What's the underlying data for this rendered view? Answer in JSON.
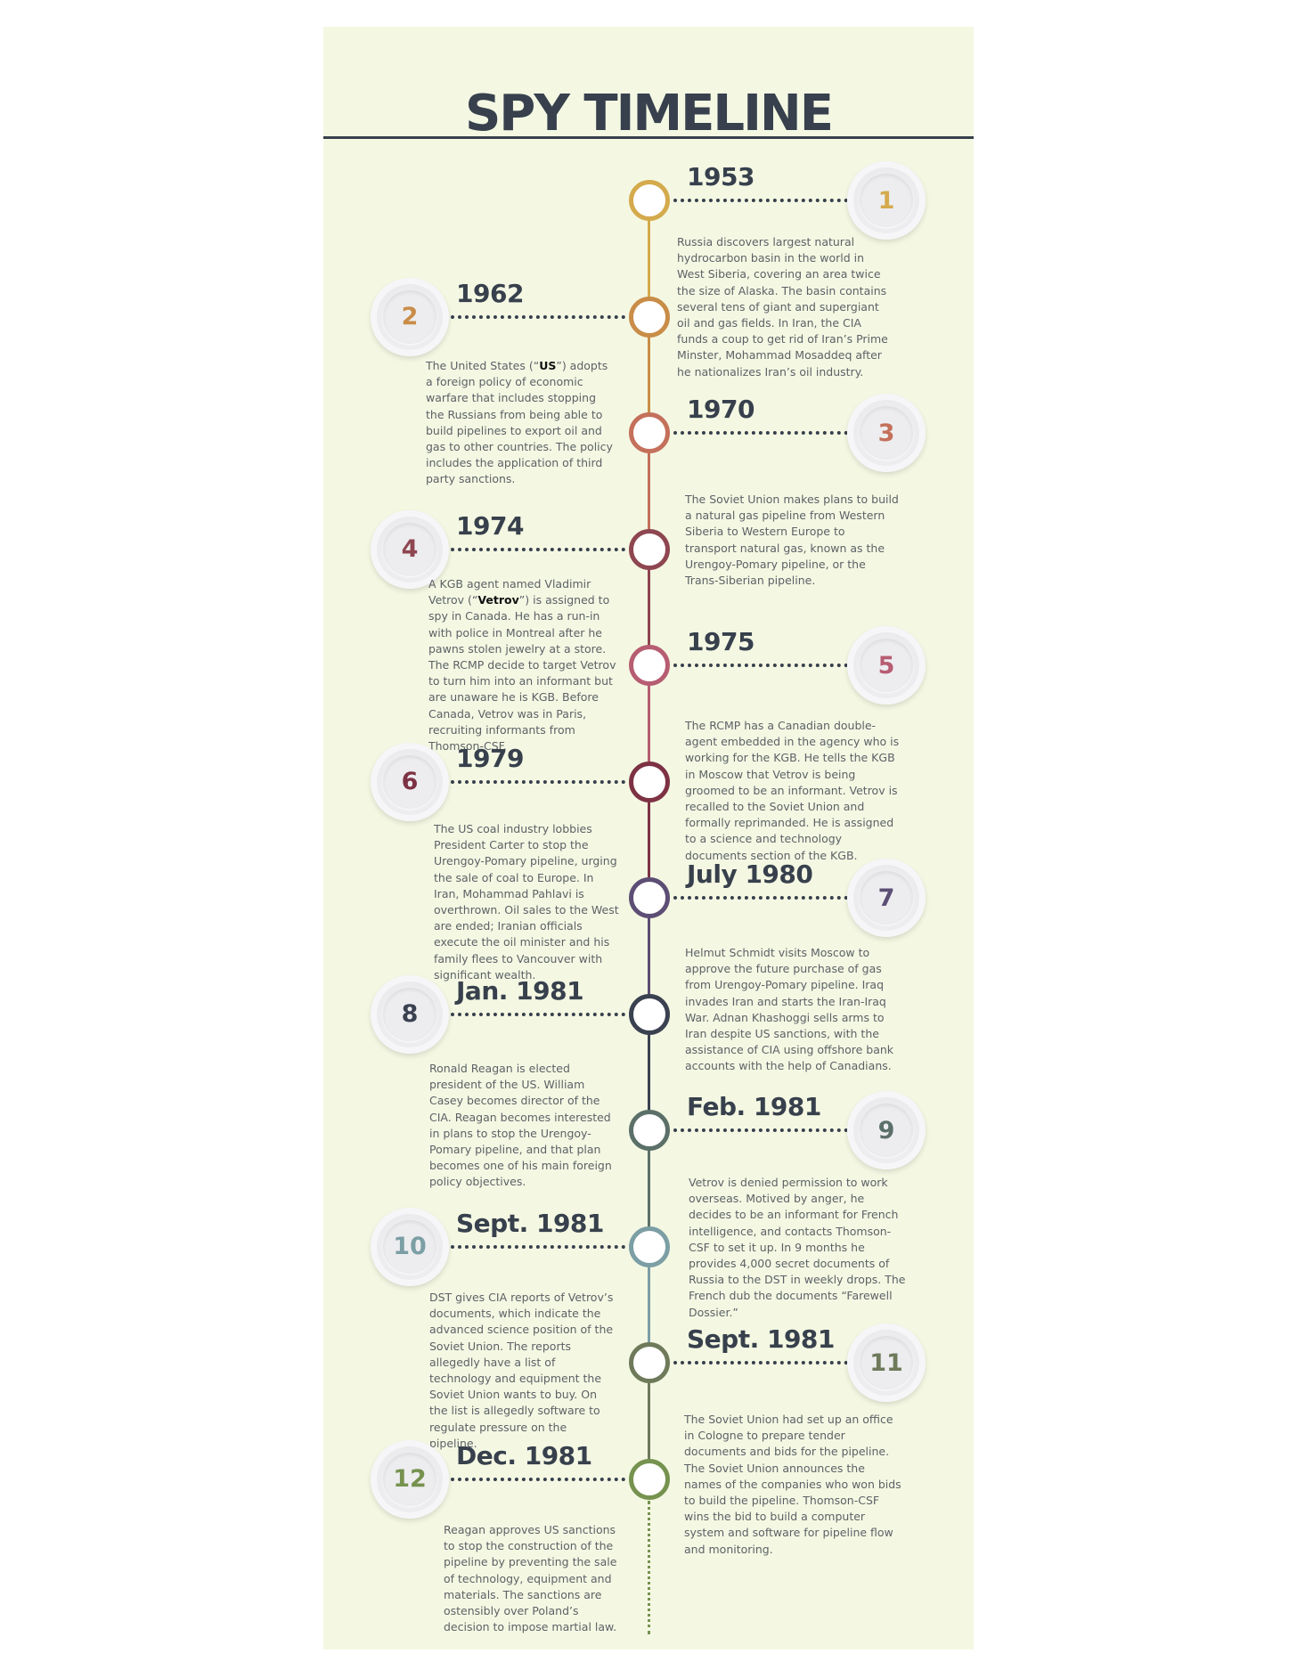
{
  "title": "SPY TIMELINE",
  "colors": {
    "background": "#f4f8e3",
    "text_dark": "#37404c",
    "text_body": "#5d6166"
  },
  "events": [
    {
      "number": "1",
      "date": "1953",
      "side": "right",
      "color": "#d4aa4c",
      "description": "Russia discovers largest natural hydrocarbon basin in the world in West Siberia, covering an area twice the size of Alaska. The basin contains several tens of giant and supergiant oil and gas fields. In Iran, the CIA funds a coup to get rid of Iran’s Prime Minster, Mohammad Mosaddeq after he nationalizes Iran’s oil industry."
    },
    {
      "number": "2",
      "date": "1962",
      "side": "left",
      "color": "#c98d48",
      "description_parts": [
        "The United States (“",
        "US",
        "”) adopts a foreign policy of economic warfare that includes stopping the Russians from being able to build pipelines to export oil and gas to other countries. The policy includes the application of third party sanctions."
      ]
    },
    {
      "number": "3",
      "date": "1970",
      "side": "right",
      "color": "#c4705b",
      "description": "The Soviet Union makes plans to build a natural gas pipeline from Western Siberia to Western Europe to transport natural gas, known as the  Urengoy-Pomary pipeline, or the Trans-Siberian pipeline."
    },
    {
      "number": "4",
      "date": "1974",
      "side": "left",
      "color": "#8e4650",
      "description_parts": [
        "A KGB agent named Vladimir Vetrov (“",
        "Vetrov",
        "”) is assigned to spy in Canada. He has a run-in with police in Montreal after he pawns stolen jewelry at a store. The RCMP decide to target Vetrov to turn him into an informant but are unaware he is KGB. Before Canada, Vetrov was in Paris, recruiting informants from Thomson-CSF."
      ]
    },
    {
      "number": "5",
      "date": "1975",
      "side": "right",
      "color": "#b75d72",
      "description": "The RCMP has a Canadian double-agent embedded in the agency who is working for the KGB. He tells the KGB in Moscow that Vetrov is being groomed to be an informant. Vetrov is recalled to the Soviet Union and formally reprimanded. He is assigned to a science and technology documents section of the KGB."
    },
    {
      "number": "6",
      "date": "1979",
      "side": "left",
      "color": "#7d3244",
      "description": "The US coal industry lobbies President Carter to stop the Urengoy-Pomary pipeline, urging the sale of coal to Europe. In Iran, Mohammad Pahlavi is overthrown. Oil sales to the West are ended; Iranian officials execute the oil minister and his family flees to Vancouver with significant wealth."
    },
    {
      "number": "7",
      "date": "July 1980",
      "side": "right",
      "color": "#5c4e74",
      "description": "Helmut Schmidt visits Moscow to approve the future purchase of gas from Urengoy-Pomary pipeline. Iraq invades Iran and starts the Iran-Iraq War. Adnan Khashoggi sells arms to Iran despite US sanctions, with the assistance of CIA using offshore bank accounts with the help of Canadians."
    },
    {
      "number": "8",
      "date": "Jan. 1981",
      "side": "left",
      "color": "#3a4150",
      "description": "Ronald Reagan is elected president of the US. William Casey becomes director of the CIA. Reagan becomes interested in plans to stop the Urengoy-Pomary pipeline, and that plan becomes one of his main foreign policy objectives."
    },
    {
      "number": "9",
      "date": "Feb. 1981",
      "side": "right",
      "color": "#5b7068",
      "description": "Vetrov is denied permission to work overseas. Motived by anger, he decides to be an informant for French intelligence, and contacts Thomson-CSF to set it up. In 9 months he provides 4,000 secret documents of Russia to the DST in weekly drops. The French dub the documents “Farewell Dossier.”"
    },
    {
      "number": "10",
      "date": "Sept. 1981",
      "side": "left",
      "color": "#7c9ea5",
      "description": "DST gives CIA reports of Vetrov’s documents, which indicate the advanced science position of the Soviet Union. The reports allegedly have a list of technology and equipment the Soviet Union wants to buy. On the list is allegedly software to regulate pressure on the pipeline."
    },
    {
      "number": "11",
      "date": "Sept. 1981",
      "side": "right",
      "color": "#6e7a5a",
      "description": "The Soviet Union had set up an office in Cologne to prepare tender documents and bids for the pipeline. The Soviet Union announces the names of the companies who won bids to build the pipeline. Thomson-CSF wins the bid to build a computer system and software for pipeline flow and monitoring."
    },
    {
      "number": "12",
      "date": "Dec. 1981",
      "side": "left",
      "color": "#76924f",
      "description": "Reagan approves US sanctions to stop the construction of the pipeline by preventing the sale of technology, equipment and materials. The sanctions are ostensibly over Poland’s decision to impose martial law."
    }
  ]
}
